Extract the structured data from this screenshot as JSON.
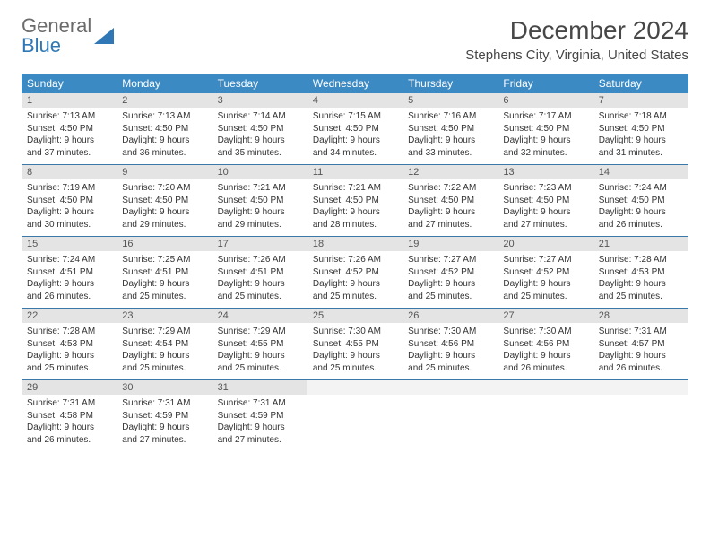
{
  "logo": {
    "text_general": "General",
    "text_blue": "Blue"
  },
  "title": "December 2024",
  "location": "Stephens City, Virginia, United States",
  "colors": {
    "header_bg": "#3b8ac4",
    "header_fg": "#ffffff",
    "num_bg": "#e4e4e4",
    "blank_bg": "#f3f3f3",
    "week_border": "#3b78a8",
    "text": "#333333",
    "title_color": "#474747"
  },
  "day_names": [
    "Sunday",
    "Monday",
    "Tuesday",
    "Wednesday",
    "Thursday",
    "Friday",
    "Saturday"
  ],
  "weeks": [
    [
      {
        "num": "1",
        "sunrise": "Sunrise: 7:13 AM",
        "sunset": "Sunset: 4:50 PM",
        "daylight1": "Daylight: 9 hours",
        "daylight2": "and 37 minutes."
      },
      {
        "num": "2",
        "sunrise": "Sunrise: 7:13 AM",
        "sunset": "Sunset: 4:50 PM",
        "daylight1": "Daylight: 9 hours",
        "daylight2": "and 36 minutes."
      },
      {
        "num": "3",
        "sunrise": "Sunrise: 7:14 AM",
        "sunset": "Sunset: 4:50 PM",
        "daylight1": "Daylight: 9 hours",
        "daylight2": "and 35 minutes."
      },
      {
        "num": "4",
        "sunrise": "Sunrise: 7:15 AM",
        "sunset": "Sunset: 4:50 PM",
        "daylight1": "Daylight: 9 hours",
        "daylight2": "and 34 minutes."
      },
      {
        "num": "5",
        "sunrise": "Sunrise: 7:16 AM",
        "sunset": "Sunset: 4:50 PM",
        "daylight1": "Daylight: 9 hours",
        "daylight2": "and 33 minutes."
      },
      {
        "num": "6",
        "sunrise": "Sunrise: 7:17 AM",
        "sunset": "Sunset: 4:50 PM",
        "daylight1": "Daylight: 9 hours",
        "daylight2": "and 32 minutes."
      },
      {
        "num": "7",
        "sunrise": "Sunrise: 7:18 AM",
        "sunset": "Sunset: 4:50 PM",
        "daylight1": "Daylight: 9 hours",
        "daylight2": "and 31 minutes."
      }
    ],
    [
      {
        "num": "8",
        "sunrise": "Sunrise: 7:19 AM",
        "sunset": "Sunset: 4:50 PM",
        "daylight1": "Daylight: 9 hours",
        "daylight2": "and 30 minutes."
      },
      {
        "num": "9",
        "sunrise": "Sunrise: 7:20 AM",
        "sunset": "Sunset: 4:50 PM",
        "daylight1": "Daylight: 9 hours",
        "daylight2": "and 29 minutes."
      },
      {
        "num": "10",
        "sunrise": "Sunrise: 7:21 AM",
        "sunset": "Sunset: 4:50 PM",
        "daylight1": "Daylight: 9 hours",
        "daylight2": "and 29 minutes."
      },
      {
        "num": "11",
        "sunrise": "Sunrise: 7:21 AM",
        "sunset": "Sunset: 4:50 PM",
        "daylight1": "Daylight: 9 hours",
        "daylight2": "and 28 minutes."
      },
      {
        "num": "12",
        "sunrise": "Sunrise: 7:22 AM",
        "sunset": "Sunset: 4:50 PM",
        "daylight1": "Daylight: 9 hours",
        "daylight2": "and 27 minutes."
      },
      {
        "num": "13",
        "sunrise": "Sunrise: 7:23 AM",
        "sunset": "Sunset: 4:50 PM",
        "daylight1": "Daylight: 9 hours",
        "daylight2": "and 27 minutes."
      },
      {
        "num": "14",
        "sunrise": "Sunrise: 7:24 AM",
        "sunset": "Sunset: 4:50 PM",
        "daylight1": "Daylight: 9 hours",
        "daylight2": "and 26 minutes."
      }
    ],
    [
      {
        "num": "15",
        "sunrise": "Sunrise: 7:24 AM",
        "sunset": "Sunset: 4:51 PM",
        "daylight1": "Daylight: 9 hours",
        "daylight2": "and 26 minutes."
      },
      {
        "num": "16",
        "sunrise": "Sunrise: 7:25 AM",
        "sunset": "Sunset: 4:51 PM",
        "daylight1": "Daylight: 9 hours",
        "daylight2": "and 25 minutes."
      },
      {
        "num": "17",
        "sunrise": "Sunrise: 7:26 AM",
        "sunset": "Sunset: 4:51 PM",
        "daylight1": "Daylight: 9 hours",
        "daylight2": "and 25 minutes."
      },
      {
        "num": "18",
        "sunrise": "Sunrise: 7:26 AM",
        "sunset": "Sunset: 4:52 PM",
        "daylight1": "Daylight: 9 hours",
        "daylight2": "and 25 minutes."
      },
      {
        "num": "19",
        "sunrise": "Sunrise: 7:27 AM",
        "sunset": "Sunset: 4:52 PM",
        "daylight1": "Daylight: 9 hours",
        "daylight2": "and 25 minutes."
      },
      {
        "num": "20",
        "sunrise": "Sunrise: 7:27 AM",
        "sunset": "Sunset: 4:52 PM",
        "daylight1": "Daylight: 9 hours",
        "daylight2": "and 25 minutes."
      },
      {
        "num": "21",
        "sunrise": "Sunrise: 7:28 AM",
        "sunset": "Sunset: 4:53 PM",
        "daylight1": "Daylight: 9 hours",
        "daylight2": "and 25 minutes."
      }
    ],
    [
      {
        "num": "22",
        "sunrise": "Sunrise: 7:28 AM",
        "sunset": "Sunset: 4:53 PM",
        "daylight1": "Daylight: 9 hours",
        "daylight2": "and 25 minutes."
      },
      {
        "num": "23",
        "sunrise": "Sunrise: 7:29 AM",
        "sunset": "Sunset: 4:54 PM",
        "daylight1": "Daylight: 9 hours",
        "daylight2": "and 25 minutes."
      },
      {
        "num": "24",
        "sunrise": "Sunrise: 7:29 AM",
        "sunset": "Sunset: 4:55 PM",
        "daylight1": "Daylight: 9 hours",
        "daylight2": "and 25 minutes."
      },
      {
        "num": "25",
        "sunrise": "Sunrise: 7:30 AM",
        "sunset": "Sunset: 4:55 PM",
        "daylight1": "Daylight: 9 hours",
        "daylight2": "and 25 minutes."
      },
      {
        "num": "26",
        "sunrise": "Sunrise: 7:30 AM",
        "sunset": "Sunset: 4:56 PM",
        "daylight1": "Daylight: 9 hours",
        "daylight2": "and 25 minutes."
      },
      {
        "num": "27",
        "sunrise": "Sunrise: 7:30 AM",
        "sunset": "Sunset: 4:56 PM",
        "daylight1": "Daylight: 9 hours",
        "daylight2": "and 26 minutes."
      },
      {
        "num": "28",
        "sunrise": "Sunrise: 7:31 AM",
        "sunset": "Sunset: 4:57 PM",
        "daylight1": "Daylight: 9 hours",
        "daylight2": "and 26 minutes."
      }
    ],
    [
      {
        "num": "29",
        "sunrise": "Sunrise: 7:31 AM",
        "sunset": "Sunset: 4:58 PM",
        "daylight1": "Daylight: 9 hours",
        "daylight2": "and 26 minutes."
      },
      {
        "num": "30",
        "sunrise": "Sunrise: 7:31 AM",
        "sunset": "Sunset: 4:59 PM",
        "daylight1": "Daylight: 9 hours",
        "daylight2": "and 27 minutes."
      },
      {
        "num": "31",
        "sunrise": "Sunrise: 7:31 AM",
        "sunset": "Sunset: 4:59 PM",
        "daylight1": "Daylight: 9 hours",
        "daylight2": "and 27 minutes."
      },
      {
        "blank": true
      },
      {
        "blank": true
      },
      {
        "blank": true
      },
      {
        "blank": true
      }
    ]
  ]
}
